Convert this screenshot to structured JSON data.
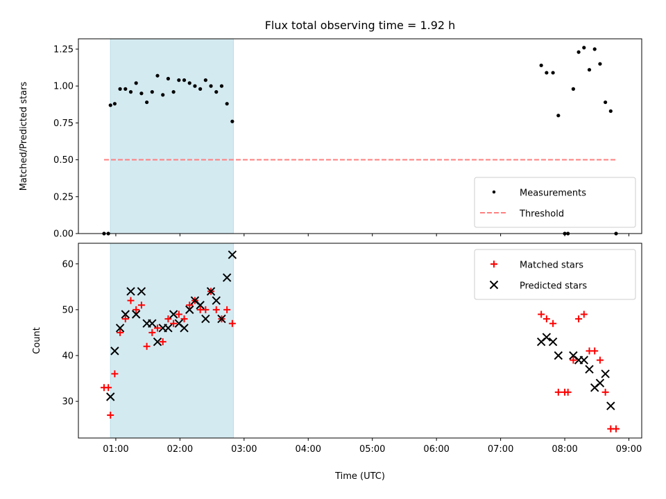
{
  "figure": {
    "title": "Flux total observing time = 1.92 h"
  },
  "chart_data": [
    {
      "type": "scatter",
      "title": "Flux total observing time = 1.92 h",
      "xlabel": "",
      "ylabel": "Matched/Predicted stars",
      "xlim": [
        "00:25",
        "09:12"
      ],
      "ylim": [
        0,
        1.32
      ],
      "yticks": [
        "0.00",
        "0.25",
        "0.50",
        "0.75",
        "1.00",
        "1.25"
      ],
      "highlight_span": {
        "from": "00:55",
        "to": "02:50",
        "color": "#d4eaf1"
      },
      "legend_position": "lower right",
      "legend": [
        {
          "label": "Measurements",
          "marker": "dot",
          "color": "#000000"
        },
        {
          "label": "Threshold",
          "marker": "dashed-line",
          "color": "#ff7f7f"
        }
      ],
      "series": [
        {
          "name": "Measurements",
          "color": "#000000",
          "marker": "dot",
          "points": [
            [
              "00:49",
              0.0
            ],
            [
              "00:53",
              0.0
            ],
            [
              "00:55",
              0.87
            ],
            [
              "00:59",
              0.88
            ],
            [
              "01:04",
              0.98
            ],
            [
              "01:09",
              0.98
            ],
            [
              "01:14",
              0.96
            ],
            [
              "01:19",
              1.02
            ],
            [
              "01:24",
              0.95
            ],
            [
              "01:29",
              0.89
            ],
            [
              "01:34",
              0.96
            ],
            [
              "01:39",
              1.07
            ],
            [
              "01:44",
              0.94
            ],
            [
              "01:49",
              1.05
            ],
            [
              "01:54",
              0.96
            ],
            [
              "01:59",
              1.04
            ],
            [
              "02:04",
              1.04
            ],
            [
              "02:09",
              1.02
            ],
            [
              "02:14",
              1.0
            ],
            [
              "02:19",
              0.98
            ],
            [
              "02:24",
              1.04
            ],
            [
              "02:29",
              1.0
            ],
            [
              "02:34",
              0.96
            ],
            [
              "02:39",
              1.0
            ],
            [
              "02:44",
              0.88
            ],
            [
              "02:49",
              0.76
            ],
            [
              "07:38",
              1.14
            ],
            [
              "07:43",
              1.09
            ],
            [
              "07:49",
              1.09
            ],
            [
              "07:54",
              0.8
            ],
            [
              "08:00",
              0.0
            ],
            [
              "08:03",
              0.0
            ],
            [
              "08:08",
              0.98
            ],
            [
              "08:13",
              1.23
            ],
            [
              "08:18",
              1.26
            ],
            [
              "08:23",
              1.11
            ],
            [
              "08:28",
              1.25
            ],
            [
              "08:33",
              1.15
            ],
            [
              "08:38",
              0.89
            ],
            [
              "08:43",
              0.83
            ],
            [
              "08:48",
              0.0
            ]
          ]
        },
        {
          "name": "Threshold",
          "color": "#ff7f7f",
          "style": "dashed",
          "points": [
            [
              "00:49",
              0.5
            ],
            [
              "08:48",
              0.5
            ]
          ]
        }
      ]
    },
    {
      "type": "scatter",
      "title": "",
      "xlabel": "Time (UTC)",
      "ylabel": "Count",
      "xlim": [
        "00:25",
        "09:12"
      ],
      "ylim": [
        22,
        64.5
      ],
      "yticks": [
        "30",
        "40",
        "50",
        "60"
      ],
      "xticks": [
        "01:00",
        "02:00",
        "03:00",
        "04:00",
        "05:00",
        "06:00",
        "07:00",
        "08:00",
        "09:00"
      ],
      "highlight_span": {
        "from": "00:55",
        "to": "02:50",
        "color": "#d4eaf1"
      },
      "legend_position": "upper right",
      "legend": [
        {
          "label": "Matched stars",
          "marker": "plus",
          "color": "#ff0000"
        },
        {
          "label": "Predicted stars",
          "marker": "x",
          "color": "#000000"
        }
      ],
      "series": [
        {
          "name": "Matched stars",
          "color": "#ff0000",
          "marker": "plus",
          "points": [
            [
              "00:49",
              33
            ],
            [
              "00:53",
              33
            ],
            [
              "00:55",
              27
            ],
            [
              "00:59",
              36
            ],
            [
              "01:04",
              45
            ],
            [
              "01:09",
              48
            ],
            [
              "01:14",
              52
            ],
            [
              "01:19",
              50
            ],
            [
              "01:24",
              51
            ],
            [
              "01:29",
              42
            ],
            [
              "01:34",
              45
            ],
            [
              "01:39",
              46
            ],
            [
              "01:44",
              43
            ],
            [
              "01:49",
              48
            ],
            [
              "01:54",
              47
            ],
            [
              "01:59",
              49
            ],
            [
              "02:04",
              48
            ],
            [
              "02:09",
              51
            ],
            [
              "02:14",
              52
            ],
            [
              "02:19",
              50
            ],
            [
              "02:24",
              50
            ],
            [
              "02:29",
              54
            ],
            [
              "02:34",
              50
            ],
            [
              "02:39",
              48
            ],
            [
              "02:44",
              50
            ],
            [
              "02:49",
              47
            ],
            [
              "07:38",
              49
            ],
            [
              "07:43",
              48
            ],
            [
              "07:49",
              47
            ],
            [
              "07:54",
              32
            ],
            [
              "08:00",
              32
            ],
            [
              "08:03",
              32
            ],
            [
              "08:08",
              39
            ],
            [
              "08:13",
              48
            ],
            [
              "08:18",
              49
            ],
            [
              "08:23",
              41
            ],
            [
              "08:28",
              41
            ],
            [
              "08:33",
              39
            ],
            [
              "08:38",
              32
            ],
            [
              "08:43",
              24
            ],
            [
              "08:48",
              24
            ]
          ]
        },
        {
          "name": "Predicted stars",
          "color": "#000000",
          "marker": "x",
          "points": [
            [
              "00:55",
              31
            ],
            [
              "00:59",
              41
            ],
            [
              "01:04",
              46
            ],
            [
              "01:09",
              49
            ],
            [
              "01:14",
              54
            ],
            [
              "01:19",
              49
            ],
            [
              "01:24",
              54
            ],
            [
              "01:29",
              47
            ],
            [
              "01:34",
              47
            ],
            [
              "01:39",
              43
            ],
            [
              "01:44",
              46
            ],
            [
              "01:49",
              46
            ],
            [
              "01:54",
              49
            ],
            [
              "01:59",
              47
            ],
            [
              "02:04",
              46
            ],
            [
              "02:09",
              50
            ],
            [
              "02:14",
              52
            ],
            [
              "02:19",
              51
            ],
            [
              "02:24",
              48
            ],
            [
              "02:29",
              54
            ],
            [
              "02:34",
              52
            ],
            [
              "02:39",
              48
            ],
            [
              "02:44",
              57
            ],
            [
              "02:49",
              62
            ],
            [
              "07:38",
              43
            ],
            [
              "07:43",
              44
            ],
            [
              "07:49",
              43
            ],
            [
              "07:54",
              40
            ],
            [
              "08:08",
              40
            ],
            [
              "08:13",
              39
            ],
            [
              "08:18",
              39
            ],
            [
              "08:23",
              37
            ],
            [
              "08:28",
              33
            ],
            [
              "08:33",
              34
            ],
            [
              "08:38",
              36
            ],
            [
              "08:43",
              29
            ]
          ]
        }
      ]
    }
  ]
}
